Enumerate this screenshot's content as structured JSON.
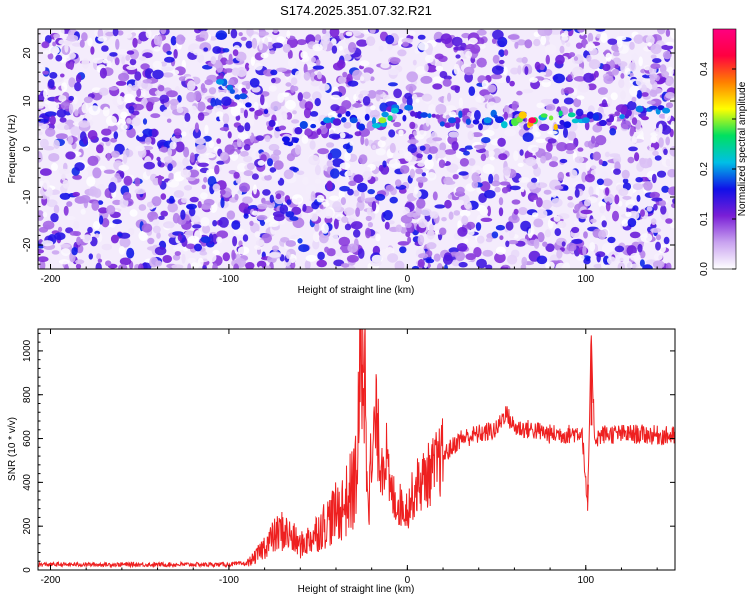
{
  "title": "S174.2025.351.07.32.R21",
  "chart_data": [
    {
      "type": "heatmap",
      "xlabel": "Height of straight line (km)",
      "ylabel": "Frequency (Hz)",
      "xlim": [
        -207,
        150
      ],
      "ylim": [
        -25,
        25
      ],
      "xticks": [
        -200,
        -100,
        0,
        100
      ],
      "yticks": [
        -20,
        -10,
        0,
        10,
        20
      ],
      "colorbar": {
        "label": "Normalized spectral amplitude",
        "range": [
          0,
          0.48
        ],
        "ticks": [
          "0.0",
          "0.1",
          "0.2",
          "0.3",
          "0.4"
        ],
        "colors": [
          "#ffffff",
          "#c9a3f0",
          "#7a1fd6",
          "#1010e8",
          "#00bfe6",
          "#00e060",
          "#ffff00",
          "#ff8000",
          "#ff0040",
          "#ff0080"
        ]
      },
      "tone_track": [
        {
          "x": -105,
          "freq": 14,
          "amp": 0.2
        },
        {
          "x": -92,
          "freq": 11,
          "amp": 0.18
        },
        {
          "x": -68,
          "freq": 2,
          "amp": 0.16
        },
        {
          "x": -45,
          "freq": 6,
          "amp": 0.2
        },
        {
          "x": -30,
          "freq": 6,
          "amp": 0.18
        },
        {
          "x": -14,
          "freq": 6,
          "amp": 0.3
        },
        {
          "x": -7,
          "freq": 8,
          "amp": 0.22
        },
        {
          "x": 25,
          "freq": 6,
          "amp": 0.18
        },
        {
          "x": 45,
          "freq": 6,
          "amp": 0.2
        },
        {
          "x": 70,
          "freq": 6,
          "amp": 0.45
        },
        {
          "x": 100,
          "freq": 6,
          "amp": 0.2
        },
        {
          "x": 145,
          "freq": 8,
          "amp": 0.2
        }
      ],
      "grid": false
    },
    {
      "type": "line",
      "xlabel": "Height of straight line (km)",
      "ylabel": "SNR (10 * v/v)",
      "xlim": [
        -207,
        150
      ],
      "ylim": [
        0,
        1100
      ],
      "xticks": [
        -200,
        -100,
        0,
        100
      ],
      "yticks": [
        0,
        200,
        400,
        600,
        800,
        1000
      ],
      "color": "#ee2020",
      "series": [
        {
          "x": [
            -207,
            -190,
            -170,
            -150,
            -130,
            -110,
            -100,
            -90,
            -85,
            -80,
            -75,
            -70,
            -65,
            -60,
            -55,
            -50,
            -45,
            -40,
            -35,
            -30,
            -28,
            -25,
            -22,
            -20,
            -18,
            -15,
            -12,
            -10,
            -5,
            0,
            5,
            10,
            15,
            20,
            25,
            30,
            40,
            50,
            55,
            60,
            70,
            80,
            90,
            98,
            101,
            103,
            105,
            110,
            120,
            130,
            140,
            150
          ],
          "y": [
            25,
            25,
            25,
            25,
            25,
            25,
            25,
            30,
            60,
            110,
            150,
            180,
            150,
            110,
            140,
            180,
            220,
            260,
            300,
            380,
            500,
            1100,
            450,
            420,
            700,
            500,
            540,
            360,
            300,
            280,
            380,
            420,
            460,
            520,
            560,
            600,
            620,
            640,
            720,
            650,
            640,
            620,
            620,
            630,
            270,
            1050,
            600,
            620,
            620,
            620,
            615,
            610
          ]
        }
      ],
      "grid": false
    }
  ]
}
